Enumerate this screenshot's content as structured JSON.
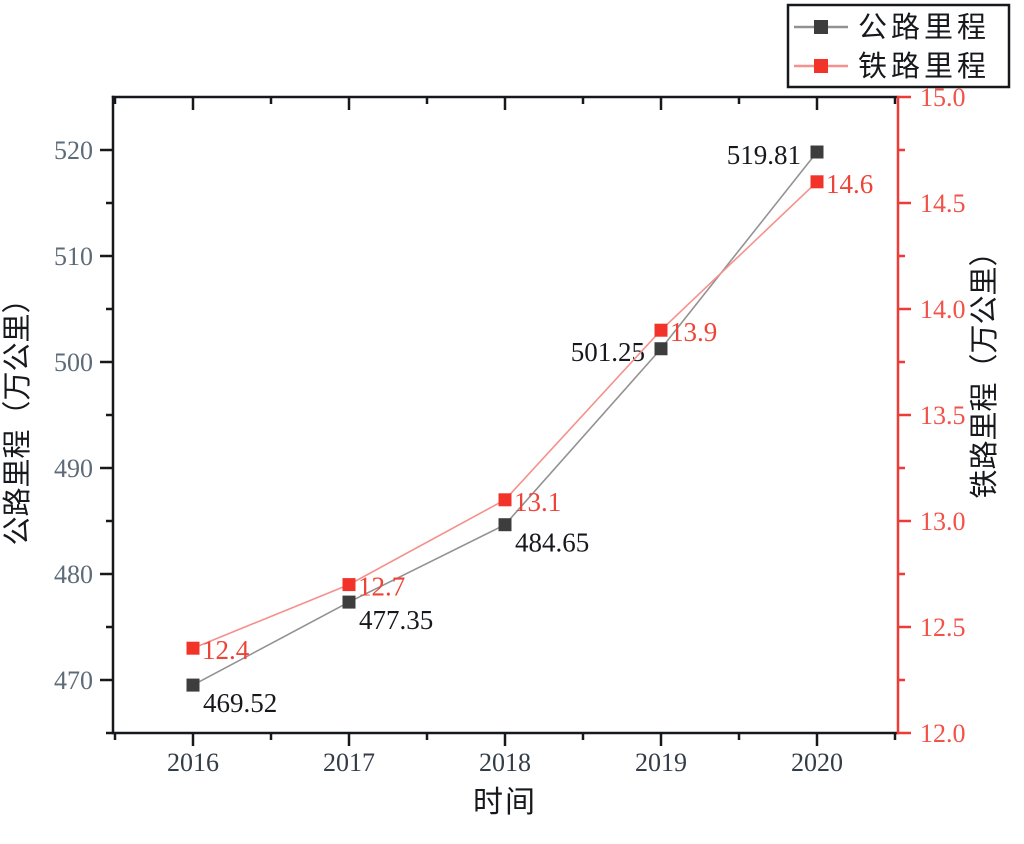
{
  "figure": {
    "background": "#ffffff"
  },
  "chart_data": {
    "type": "line",
    "title": "",
    "xlabel": "时间",
    "x_categories": [
      "2016",
      "2017",
      "2018",
      "2019",
      "2020"
    ],
    "series": [
      {
        "name": "公路里程",
        "axis": "left",
        "values": [
          469.52,
          477.35,
          484.65,
          501.25,
          519.81
        ],
        "point_labels": [
          "469.52",
          "477.35",
          "484.65",
          "501.25",
          "519.81"
        ],
        "label_placements": [
          "below-right",
          "below-right",
          "below-right",
          "left",
          "left"
        ],
        "marker": "square",
        "marker_color": "#3d3d3d",
        "line_color": "#929292",
        "label_color": "#16181c"
      },
      {
        "name": "铁路里程",
        "axis": "right",
        "values": [
          12.4,
          12.7,
          13.1,
          13.9,
          14.6
        ],
        "point_labels": [
          "12.4",
          "12.7",
          "13.1",
          "13.9",
          "14.6"
        ],
        "label_placements": [
          "right",
          "right",
          "right",
          "right",
          "right"
        ],
        "marker": "square",
        "marker_color": "#f1332a",
        "line_color": "#f5918c",
        "label_color": "#ee4438"
      }
    ],
    "left_axis": {
      "title": "公路里程（万公里）",
      "range": [
        465,
        525
      ],
      "major_ticks": [
        470,
        480,
        490,
        500,
        510,
        520
      ],
      "minor_ticks": [
        465,
        475,
        485,
        495,
        505,
        515
      ],
      "axis_color": "#16181c",
      "tick_label_color": "#5d6b78",
      "title_color": "#16181c"
    },
    "right_axis": {
      "title": "铁路里程（万公里）",
      "range": [
        12,
        15
      ],
      "major_ticks": [
        12.0,
        12.5,
        13.0,
        13.5,
        14.0,
        14.5,
        15.0
      ],
      "major_tick_labels": [
        "12.0",
        "12.5",
        "13.0",
        "13.5",
        "14.0",
        "14.5",
        "15.0"
      ],
      "minor_ticks": [
        12.25,
        12.75,
        13.25,
        13.75,
        14.25,
        14.75
      ],
      "axis_color": "#ef3b36",
      "tick_label_color": "#f25248",
      "title_color": "#16181c"
    },
    "x_axis": {
      "title": "时间",
      "tick_label_color": "#333d48",
      "axis_color": "#16181c",
      "title_color": "#16181c"
    },
    "legend": {
      "position": "top-right",
      "border_color": "#16181c",
      "background": "#ffffff",
      "text_color": "#16181c",
      "entries": [
        {
          "label": "公路里程"
        },
        {
          "label": "铁路里程"
        }
      ]
    },
    "grid": false
  }
}
